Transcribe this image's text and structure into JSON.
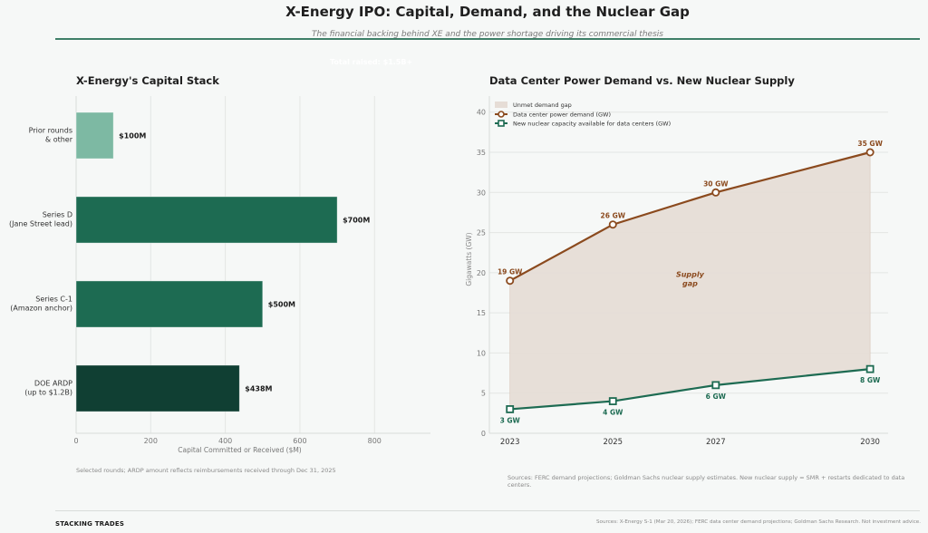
{
  "header": {
    "title": "X-Energy IPO: Capital, Demand, and the Nuclear Gap",
    "subtitle": "The financial backing behind XE and the power shortage driving its commercial thesis",
    "hidden_total_label": "Total raised: $1.5B+"
  },
  "chart_data": [
    {
      "type": "bar",
      "orientation": "horizontal",
      "title": "X-Energy's Capital Stack",
      "xlabel": "Capital Committed or Received ($M)",
      "ylabel": "",
      "xlim": [
        0,
        950
      ],
      "xticks": [
        0,
        200,
        400,
        600,
        800
      ],
      "grid": true,
      "categories": [
        "Prior rounds\n& other",
        "Series D\n(Jane Street lead)",
        "Series C-1\n(Amazon anchor)",
        "DOE ARDP\n(up to $1.2B)"
      ],
      "category_lines": [
        [
          "Prior rounds",
          "& other"
        ],
        [
          "Series D",
          "(Jane Street lead)"
        ],
        [
          "Series C-1",
          "(Amazon anchor)"
        ],
        [
          "DOE ARDP",
          "(up to $1.2B)"
        ]
      ],
      "values": [
        100,
        700,
        500,
        438
      ],
      "data_labels": [
        "$100M",
        "$700M",
        "$500M",
        "$438M"
      ],
      "colors": [
        "#7db9a3",
        "#1d6b52",
        "#1d6b52",
        "#103f33"
      ],
      "note": "Selected rounds; ARDP amount reflects reimbursements received through Dec 31, 2025"
    },
    {
      "type": "line",
      "title": "Data Center Power Demand vs. New Nuclear Supply",
      "xlabel": "",
      "ylabel": "Gigawatts (GW)",
      "x": [
        2023,
        2025,
        2027,
        2030
      ],
      "xticks": [
        "2023",
        "2025",
        "2027",
        "2030"
      ],
      "ylim": [
        0,
        42
      ],
      "yticks": [
        0,
        5,
        10,
        15,
        20,
        25,
        30,
        35,
        40
      ],
      "grid": true,
      "legend_position": "top-left",
      "series": [
        {
          "name": "Data center power demand (GW)",
          "values": [
            19,
            26,
            30,
            35
          ],
          "labels": [
            "19 GW",
            "26 GW",
            "30 GW",
            "35 GW"
          ],
          "color": "#8b4a1e",
          "marker": "circle"
        },
        {
          "name": "New nuclear capacity available for data centers (GW)",
          "values": [
            3,
            4,
            6,
            8
          ],
          "labels": [
            "3 GW",
            "4 GW",
            "6 GW",
            "8 GW"
          ],
          "color": "#1d6b52",
          "marker": "square"
        }
      ],
      "fill": {
        "name": "Unmet demand gap",
        "color": "#e6ddd6"
      },
      "annotation": [
        "Supply",
        "gap"
      ],
      "note": "Sources: FERC demand projections; Goldman Sachs nuclear supply estimates. New nuclear supply = SMR + restarts dedicated to data centers."
    }
  ],
  "footer": {
    "brand": "STACKING TRADES",
    "sources": "Sources: X-Energy S-1 (Mar 20, 2026); FERC data center demand projections; Goldman Sachs Research. Not investment advice."
  }
}
